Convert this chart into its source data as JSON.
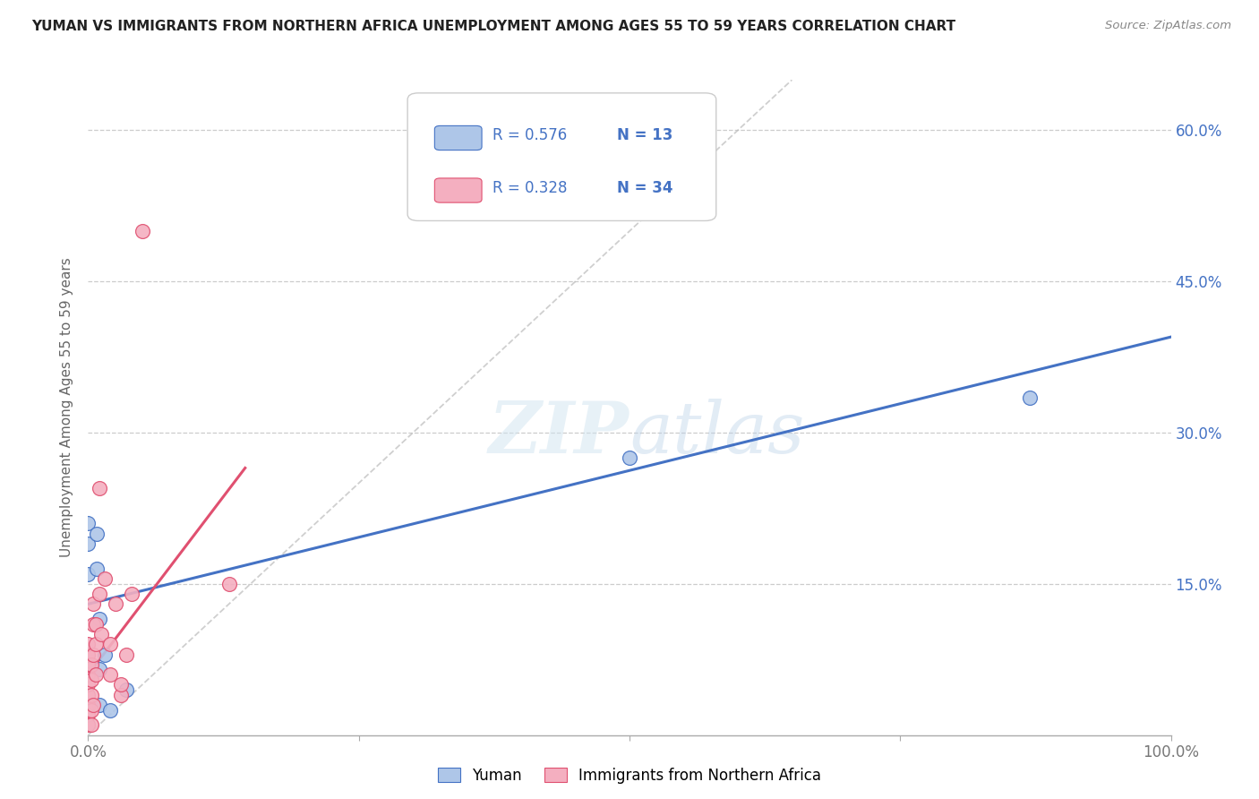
{
  "title": "YUMAN VS IMMIGRANTS FROM NORTHERN AFRICA UNEMPLOYMENT AMONG AGES 55 TO 59 YEARS CORRELATION CHART",
  "source": "Source: ZipAtlas.com",
  "ylabel": "Unemployment Among Ages 55 to 59 years",
  "xlim": [
    0,
    1.0
  ],
  "ylim": [
    0,
    0.65
  ],
  "xticks": [
    0.0,
    0.25,
    0.5,
    0.75,
    1.0
  ],
  "xticklabels": [
    "0.0%",
    "",
    "",
    "",
    "100.0%"
  ],
  "yticks": [
    0.0,
    0.15,
    0.3,
    0.45,
    0.6
  ],
  "yticklabels_right": [
    "",
    "15.0%",
    "30.0%",
    "45.0%",
    "60.0%"
  ],
  "legend_r1": "0.576",
  "legend_n1": "13",
  "legend_r2": "0.328",
  "legend_n2": "34",
  "color_blue": "#aec6e8",
  "color_pink": "#f4afc0",
  "color_blue_line": "#4472c4",
  "color_pink_line": "#e05070",
  "color_blue_text": "#4472c4",
  "watermark": "ZIPatlas",
  "legend1_label": "Yuman",
  "legend2_label": "Immigrants from Northern Africa",
  "blue_points": [
    [
      0.0,
      0.16
    ],
    [
      0.0,
      0.19
    ],
    [
      0.0,
      0.21
    ],
    [
      0.008,
      0.165
    ],
    [
      0.008,
      0.2
    ],
    [
      0.01,
      0.115
    ],
    [
      0.01,
      0.065
    ],
    [
      0.01,
      0.03
    ],
    [
      0.015,
      0.08
    ],
    [
      0.02,
      0.025
    ],
    [
      0.035,
      0.045
    ],
    [
      0.5,
      0.275
    ],
    [
      0.87,
      0.335
    ]
  ],
  "pink_points": [
    [
      0.0,
      0.03
    ],
    [
      0.0,
      0.02
    ],
    [
      0.0,
      0.04
    ],
    [
      0.0,
      0.01
    ],
    [
      0.0,
      0.06
    ],
    [
      0.0,
      0.07
    ],
    [
      0.0,
      0.08
    ],
    [
      0.0,
      0.09
    ],
    [
      0.0,
      0.05
    ],
    [
      0.003,
      0.025
    ],
    [
      0.003,
      0.04
    ],
    [
      0.003,
      0.055
    ],
    [
      0.003,
      0.07
    ],
    [
      0.003,
      0.01
    ],
    [
      0.005,
      0.03
    ],
    [
      0.005,
      0.08
    ],
    [
      0.005,
      0.11
    ],
    [
      0.005,
      0.13
    ],
    [
      0.007,
      0.06
    ],
    [
      0.007,
      0.09
    ],
    [
      0.007,
      0.11
    ],
    [
      0.01,
      0.14
    ],
    [
      0.01,
      0.245
    ],
    [
      0.012,
      0.1
    ],
    [
      0.015,
      0.155
    ],
    [
      0.02,
      0.09
    ],
    [
      0.02,
      0.06
    ],
    [
      0.025,
      0.13
    ],
    [
      0.03,
      0.04
    ],
    [
      0.03,
      0.05
    ],
    [
      0.035,
      0.08
    ],
    [
      0.04,
      0.14
    ],
    [
      0.05,
      0.5
    ],
    [
      0.13,
      0.15
    ]
  ],
  "blue_trendline": [
    [
      0.0,
      0.13
    ],
    [
      1.0,
      0.395
    ]
  ],
  "pink_trendline": [
    [
      0.0,
      0.06
    ],
    [
      0.145,
      0.265
    ]
  ],
  "diag_line": [
    [
      0.0,
      0.0
    ],
    [
      0.65,
      0.65
    ]
  ],
  "bg_color": "#ffffff",
  "grid_color": "#cccccc"
}
